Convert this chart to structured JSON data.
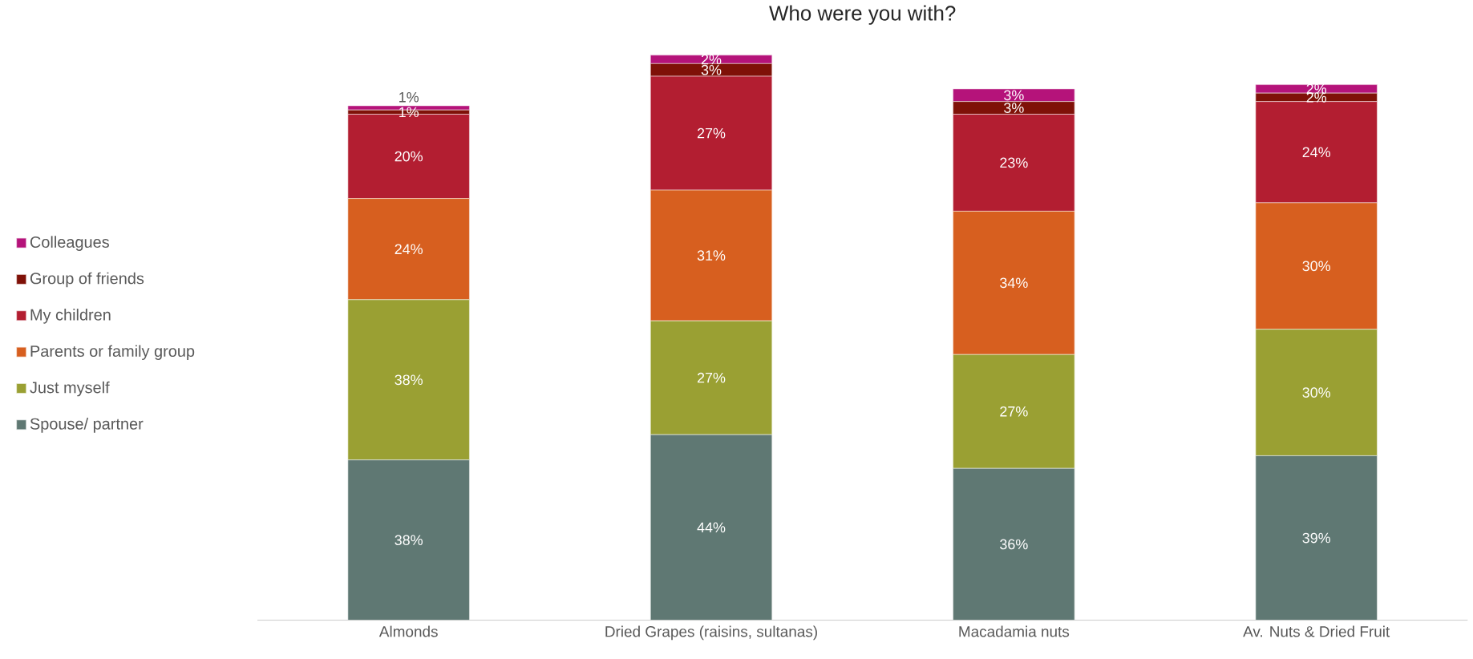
{
  "chart_data": {
    "type": "bar",
    "stacked": true,
    "title": "Who were you with?",
    "categories": [
      "Almonds",
      "Dried Grapes (raisins, sultanas)",
      "Macadamia nuts",
      "Av. Nuts & Dried Fruit"
    ],
    "legend": "left",
    "series": [
      {
        "name": "Spouse/ partner",
        "color": "#5f7873",
        "values": [
          38,
          44,
          36,
          39
        ],
        "value_labels": [
          "38%",
          "44%",
          "36%",
          "39%"
        ]
      },
      {
        "name": "Just myself",
        "color": "#9aa033",
        "values": [
          38,
          27,
          27,
          30
        ],
        "value_labels": [
          "38%",
          "27%",
          "27%",
          "30%"
        ]
      },
      {
        "name": "Parents or family group",
        "color": "#d75f1f",
        "values": [
          24,
          31,
          34,
          30
        ],
        "value_labels": [
          "24%",
          "31%",
          "34%",
          "30%"
        ]
      },
      {
        "name": "My children",
        "color": "#b31e31",
        "values": [
          20,
          27,
          23,
          24
        ],
        "value_labels": [
          "20%",
          "27%",
          "23%",
          "24%"
        ]
      },
      {
        "name": "Group of friends",
        "color": "#7f1108",
        "values": [
          1,
          3,
          3,
          2
        ],
        "value_labels": [
          "1%",
          "3%",
          "3%",
          "2%"
        ]
      },
      {
        "name": "Colleagues",
        "color": "#b5137a",
        "values": [
          1,
          2,
          3,
          2
        ],
        "value_labels": [
          "1%",
          "2%",
          "3%",
          "2%"
        ]
      }
    ]
  }
}
